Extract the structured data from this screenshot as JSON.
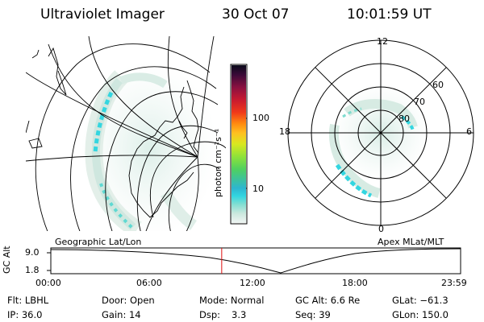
{
  "header": {
    "instrument": "Ultraviolet Imager",
    "date": "30 Oct 07",
    "time": "10:01:59 UT"
  },
  "colorbar": {
    "unit_label": "photon cm⁻²s⁻¹",
    "ticks": [
      "100",
      "10"
    ]
  },
  "left_map": {
    "title": "Geographic Lat/Lon"
  },
  "right_map": {
    "title": "Apex MLat/MLT",
    "mlt_labels": [
      "12",
      "18",
      "6",
      "0"
    ],
    "lat_labels": [
      "60",
      "70",
      "80"
    ]
  },
  "timeline": {
    "ylabel": "GC Alt",
    "y_ticks": [
      "9.0",
      "1.8"
    ],
    "x_ticks": [
      "00:00",
      "06:00",
      "12:00",
      "18:00",
      "23:59"
    ],
    "current_time_fraction": 0.417
  },
  "status": {
    "row1": {
      "filter": "Flt: LBHL",
      "door": "Door: Open",
      "mode": "Mode: Normal",
      "gc_alt": "GC Alt: 6.6 Re",
      "glat": "GLat: −61.3"
    },
    "row2": {
      "ip": "IP: 36.0",
      "gain": "Gain: 14",
      "dsp_label": "Dsp:",
      "dsp_value": "3.3",
      "seq": "Seq: 39",
      "glon": "GLon: 150.0"
    }
  },
  "colors": {
    "aurora_cyan": "#33d6e0",
    "current_time_marker": "#e01010"
  }
}
